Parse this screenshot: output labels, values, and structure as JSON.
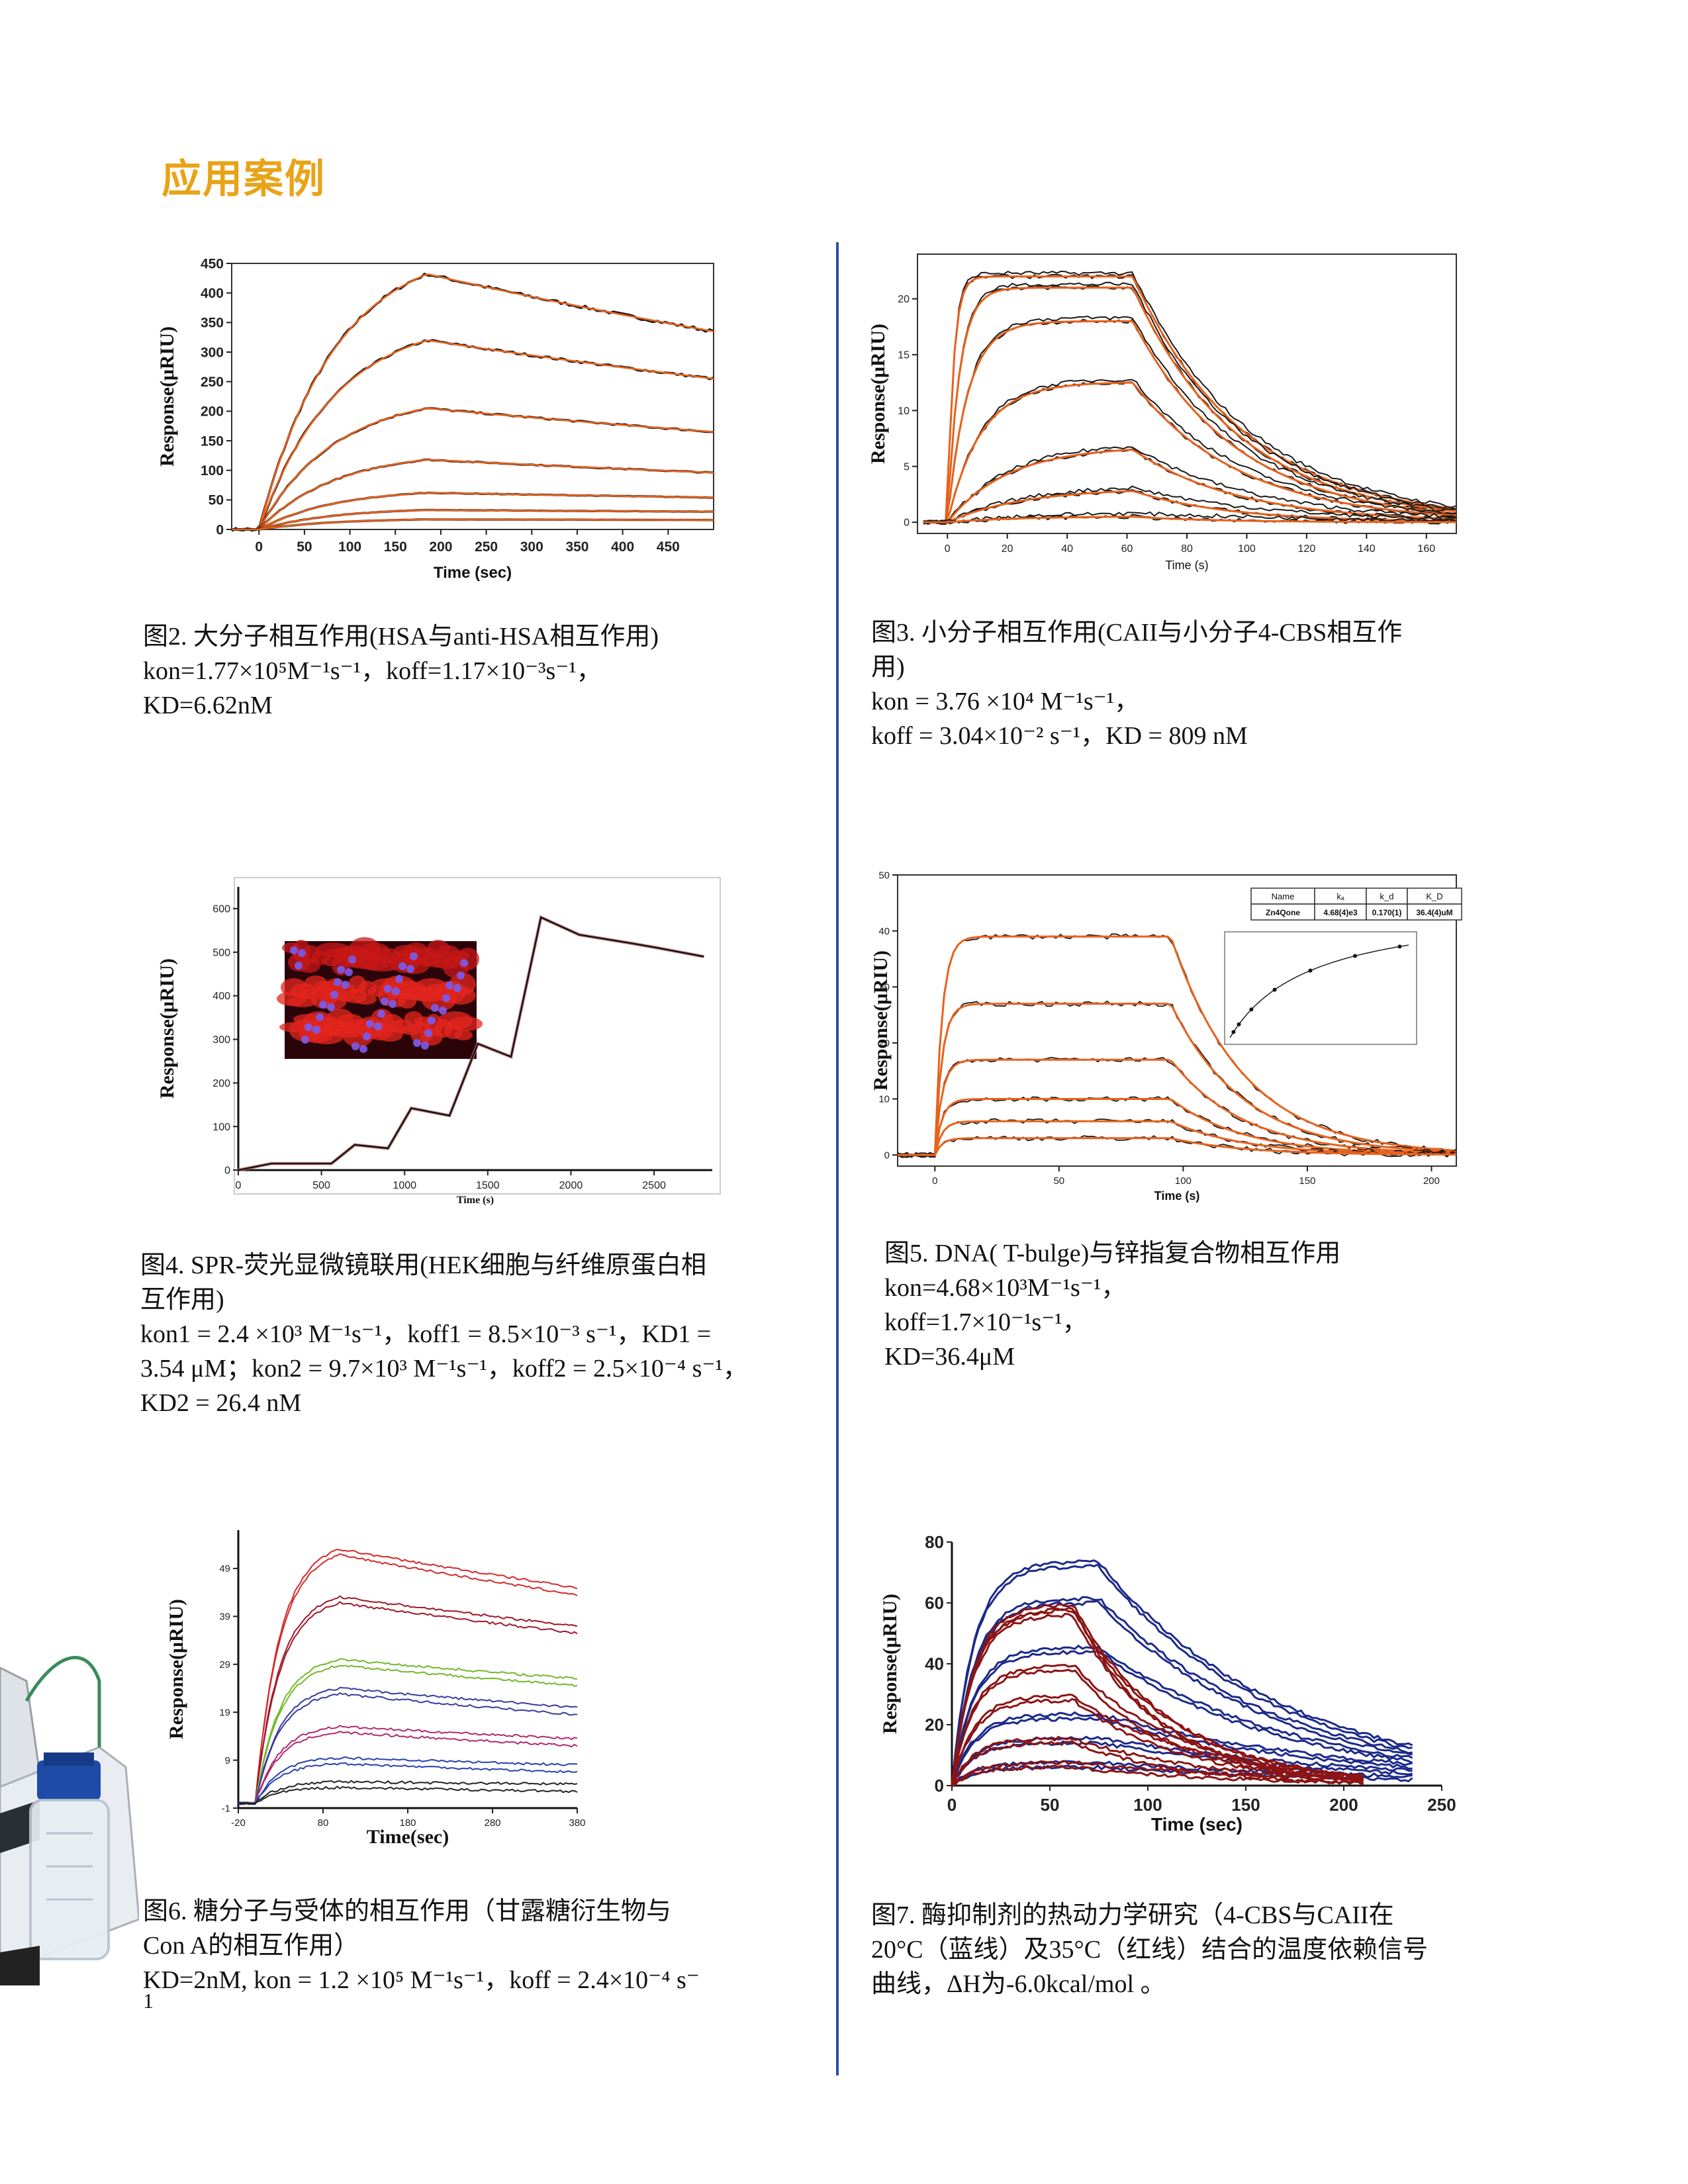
{
  "page": {
    "heading": "应用案例",
    "page_number": "1"
  },
  "figures": [
    {
      "id": "fig2",
      "caption_lines": [
        "图2. 大分子相互作用(HSA与anti-HSA相互作用)",
        "kon=1.77×10⁵M⁻¹s⁻¹，koff=1.17×10⁻³s⁻¹，",
        "KD=6.62nM"
      ]
    },
    {
      "id": "fig3",
      "caption_lines": [
        "图3. 小分子相互作用(CAII与小分子4-CBS相互作",
        "用)",
        "kon = 3.76 ×10⁴ M⁻¹s⁻¹，",
        "koff = 3.04×10⁻² s⁻¹，KD = 809 nM"
      ]
    },
    {
      "id": "fig4",
      "caption_lines": [
        "图4. SPR-荧光显微镜联用(HEK细胞与纤维原蛋白相",
        "互作用)",
        "kon1 = 2.4 ×10³ M⁻¹s⁻¹，koff1 = 8.5×10⁻³ s⁻¹，KD1 =",
        "3.54 μM；kon2 = 9.7×10³  M⁻¹s⁻¹，koff2 = 2.5×10⁻⁴ s⁻¹，",
        "KD2 = 26.4 nM"
      ]
    },
    {
      "id": "fig5",
      "caption_lines": [
        "图5. DNA( T-bulge)与锌指复合物相互作用",
        "kon=4.68×10³M⁻¹s⁻¹，",
        "koff=1.7×10⁻¹s⁻¹，",
        "KD=36.4μM"
      ]
    },
    {
      "id": "fig6",
      "caption_lines": [
        "图6. 糖分子与受体的相互作用（甘露糖衍生物与",
        "Con A的相互作用）",
        "KD=2nM, kon = 1.2 ×10⁵ M⁻¹s⁻¹，koff = 2.4×10⁻⁴ s⁻"
      ]
    },
    {
      "id": "fig7",
      "caption_lines": [
        "图7. 酶抑制剂的热动力学研究（4-CBS与CAII在",
        "20°C（蓝线）及35°C（红线）结合的温度依赖信号",
        "曲线，ΔH为-6.0kcal/mol 。"
      ]
    }
  ],
  "colors": {
    "heading": "#e8a317",
    "divider": "#2b4fa6",
    "fit": "#e8621c",
    "data": "#1a1a1a"
  },
  "chart_data": [
    {
      "type": "line",
      "title": "",
      "ylabel": "Response(μRIU)",
      "xlabel": "Time (sec)",
      "xlim": [
        -30,
        500
      ],
      "ylim": [
        0,
        450
      ],
      "xticks": [
        "0",
        "50",
        "100",
        "150",
        "200",
        "250",
        "300",
        "350",
        "400",
        "450"
      ],
      "yticks": [
        "0",
        "50",
        "100",
        "150",
        "200",
        "250",
        "300",
        "350",
        "400",
        "450"
      ],
      "association_end": 185,
      "series": [
        {
          "values_peak": 432,
          "values_end": 335
        },
        {
          "values_peak": 320,
          "values_end": 255
        },
        {
          "values_peak": 205,
          "values_end": 165
        },
        {
          "values_peak": 118,
          "values_end": 96
        },
        {
          "values_peak": 62,
          "values_end": 54
        },
        {
          "values_peak": 33,
          "values_end": 30
        },
        {
          "values_peak": 17,
          "values_end": 16
        }
      ]
    },
    {
      "type": "line",
      "title": "",
      "ylabel": "Response(μRIU)",
      "xlabel": "Time (s)",
      "xlim": [
        -10,
        170
      ],
      "ylim": [
        -1,
        24
      ],
      "xticks": [
        "0",
        "20",
        "40",
        "60",
        "80",
        "100",
        "120",
        "140",
        "160"
      ],
      "yticks": [
        "0",
        "5",
        "10",
        "15",
        "20"
      ],
      "association_end": 62,
      "series": [
        {
          "values_peak": 22.0,
          "values_end": 1.2
        },
        {
          "values_peak": 21.0,
          "values_end": 1.0
        },
        {
          "values_peak": 18.0,
          "values_end": 0.8
        },
        {
          "values_peak": 12.5,
          "values_end": 0.6
        },
        {
          "values_peak": 6.5,
          "values_end": 0.3
        },
        {
          "values_peak": 2.8,
          "values_end": 0.1
        },
        {
          "values_peak": 0.5,
          "values_end": 0.0
        }
      ]
    },
    {
      "type": "line",
      "title": "",
      "ylabel": "Response(μRIU)",
      "xlabel": "Time (s)",
      "xlim": [
        0,
        2850
      ],
      "ylim": [
        0,
        650
      ],
      "xticks": [
        "0",
        "500",
        "1000",
        "1500",
        "2000",
        "2500"
      ],
      "yticks": [
        "0",
        "100",
        "200",
        "300",
        "400",
        "500",
        "600"
      ],
      "series": [
        {
          "name": "",
          "x": [
            0,
            200,
            560,
            700,
            900,
            1040,
            1270,
            1440,
            1640,
            1820,
            2050,
            2370,
            2520,
            2800
          ],
          "y": [
            0,
            15,
            15,
            58,
            50,
            142,
            125,
            290,
            260,
            580,
            540,
            520,
            510,
            490
          ]
        }
      ]
    },
    {
      "type": "line",
      "title": "",
      "ylabel": "Response(μRIU)",
      "xlabel": "Time (s)",
      "xlim": [
        -15,
        210
      ],
      "ylim": [
        -2,
        50
      ],
      "xticks": [
        "0",
        "50",
        "100",
        "150",
        "200"
      ],
      "yticks": [
        "0",
        "10",
        "20",
        "30",
        "40",
        "50"
      ],
      "association_end": 95,
      "series": [
        {
          "values_peak": 39,
          "values_end": 0
        },
        {
          "values_peak": 27,
          "values_end": 0
        },
        {
          "values_peak": 17,
          "values_end": 0
        },
        {
          "values_peak": 10,
          "values_end": 0
        },
        {
          "values_peak": 6,
          "values_end": 0
        },
        {
          "values_peak": 3,
          "values_end": 0
        }
      ],
      "inset_table": {
        "headers": [
          "Name",
          "kₐ",
          "k_d",
          "K_D"
        ],
        "row": [
          "Zn4Qone",
          "4.68(4)e3",
          "0.170(1)",
          "36.4(4)uM"
        ]
      }
    },
    {
      "type": "line",
      "title": "",
      "ylabel": "Response(μRIU)",
      "xlabel": "Time(sec)",
      "xlim": [
        -20,
        380
      ],
      "ylim": [
        -1,
        57
      ],
      "xticks": [
        "-20",
        "80",
        "180",
        "280",
        "380"
      ],
      "yticks": [
        "-1",
        "9",
        "19",
        "29",
        "39",
        "49"
      ],
      "association_end": 100,
      "series": [
        {
          "name": "",
          "color": "#d42a2a",
          "values_peak": 53,
          "values_end": 45
        },
        {
          "name": "",
          "color": "#a0182a",
          "values_peak": 43,
          "values_end": 37
        },
        {
          "name": "",
          "color": "#72b82a",
          "values_peak": 30,
          "values_end": 26
        },
        {
          "name": "",
          "color": "#3a3aa0",
          "values_peak": 24,
          "values_end": 20
        },
        {
          "name": "",
          "color": "#b02a70",
          "values_peak": 16,
          "values_end": 13.5
        },
        {
          "name": "",
          "color": "#2a40b0",
          "values_peak": 9.5,
          "values_end": 8
        },
        {
          "name": "",
          "color": "#222222",
          "values_peak": 4.5,
          "values_end": 4
        }
      ]
    },
    {
      "type": "line",
      "title": "",
      "ylabel": "Response(μRIU)",
      "xlabel": "Time (sec)",
      "xlim": [
        0,
        250
      ],
      "ylim": [
        0,
        80
      ],
      "xticks": [
        "0",
        "50",
        "100",
        "150",
        "200",
        "250"
      ],
      "yticks": [
        "0",
        "20",
        "40",
        "60",
        "80"
      ],
      "series": [
        {
          "name": "20°C",
          "color": "#1c2a8a",
          "peaks": [
            72,
            60,
            44,
            22,
            14,
            6
          ],
          "assoc_end": 75,
          "ends": [
            12,
            10,
            8,
            6,
            4,
            2
          ]
        },
        {
          "name": "35°C",
          "color": "#8c1414",
          "peaks": [
            58,
            56,
            38,
            28,
            14,
            6
          ],
          "assoc_end": 62,
          "ends": [
            2,
            2,
            2,
            2,
            1,
            1
          ]
        }
      ]
    }
  ]
}
